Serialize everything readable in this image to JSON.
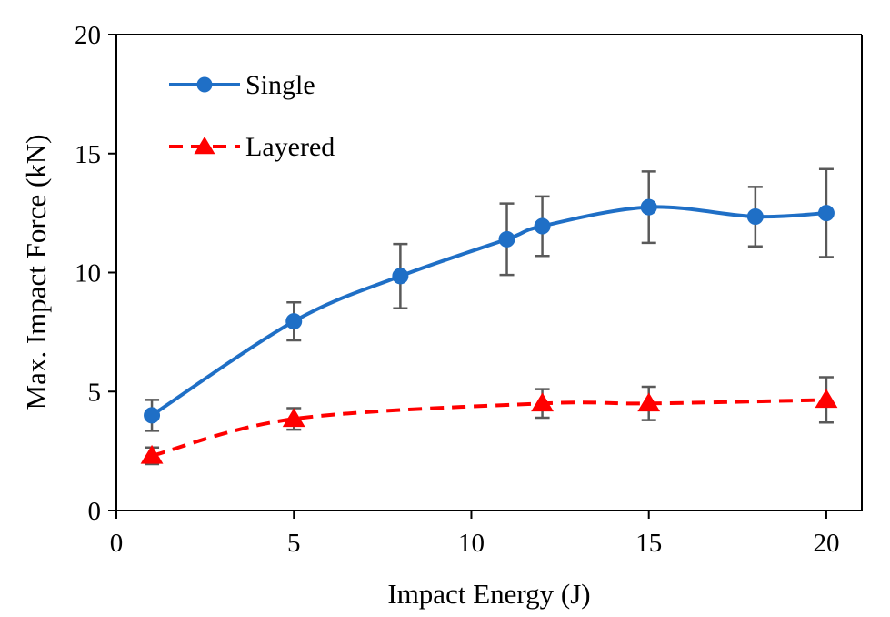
{
  "chart_data": {
    "type": "line",
    "title": "",
    "xlabel": "Impact Energy (J)",
    "ylabel": "Max. Impact Force (kN)",
    "xlim": [
      0,
      21
    ],
    "ylim": [
      0,
      20
    ],
    "xticks": [
      0,
      5,
      10,
      15,
      20
    ],
    "yticks": [
      0,
      5,
      10,
      15,
      20
    ],
    "legend_position": "top-left",
    "grid": false,
    "series": [
      {
        "name": "Single",
        "color": "#1f6fc6",
        "line_style": "solid",
        "marker": "circle",
        "x": [
          1,
          5,
          8,
          11,
          12,
          15,
          18,
          20
        ],
        "y": [
          4.0,
          7.95,
          9.85,
          11.4,
          11.95,
          12.75,
          12.35,
          12.5
        ],
        "err": [
          0.65,
          0.8,
          1.35,
          1.5,
          1.25,
          1.5,
          1.25,
          1.85
        ]
      },
      {
        "name": "Layered",
        "color": "#ff0000",
        "line_style": "dashed",
        "marker": "triangle",
        "x": [
          1,
          5,
          12,
          15,
          20
        ],
        "y": [
          2.3,
          3.85,
          4.5,
          4.5,
          4.65
        ],
        "err": [
          0.35,
          0.45,
          0.6,
          0.7,
          0.95
        ]
      }
    ]
  }
}
